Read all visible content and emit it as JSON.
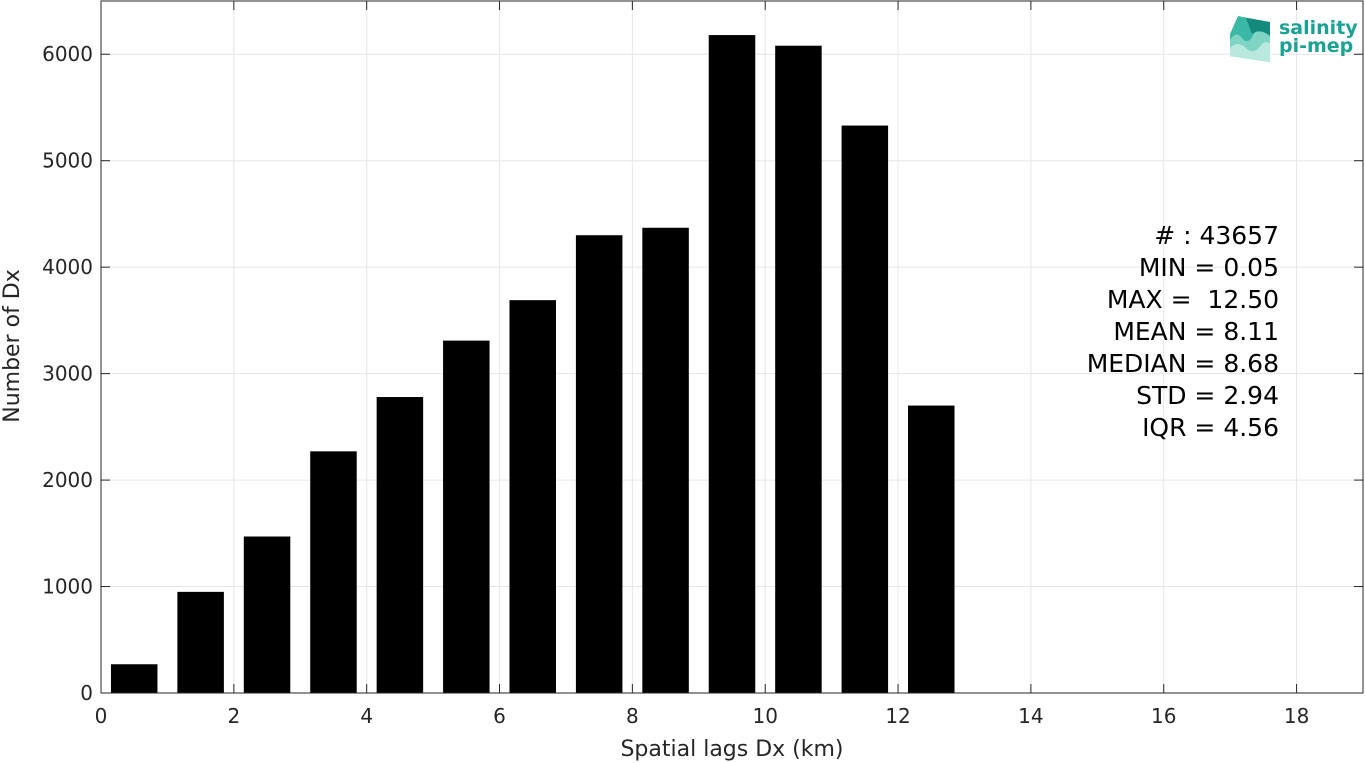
{
  "chart_data": {
    "type": "bar",
    "xlabel": "Spatial lags Dx (km)",
    "ylabel": "Number of Dx",
    "xlim": [
      0,
      19
    ],
    "ylim": [
      0,
      6500
    ],
    "x_ticks": [
      0,
      2,
      4,
      6,
      8,
      10,
      12,
      14,
      16,
      18
    ],
    "y_ticks": [
      0,
      1000,
      2000,
      3000,
      4000,
      5000,
      6000
    ],
    "grid": true,
    "bar_color": "#000000",
    "bar_width": 0.7,
    "x": [
      0.5,
      1.5,
      2.5,
      3.5,
      4.5,
      5.5,
      6.5,
      7.5,
      8.5,
      9.5,
      10.5,
      11.5,
      12.5
    ],
    "values": [
      270,
      950,
      1470,
      2270,
      2780,
      3310,
      3690,
      4300,
      4370,
      6180,
      6080,
      5330,
      2700
    ]
  },
  "stats": [
    "# : 43657",
    "MIN = 0.05",
    "MAX =  12.50",
    "MEAN = 8.11",
    "MEDIAN = 8.68",
    "STD = 2.94",
    "IQR = 4.56"
  ],
  "logo": {
    "line1": "salinity",
    "line2": "pi-mep",
    "color": "#1aa395"
  }
}
